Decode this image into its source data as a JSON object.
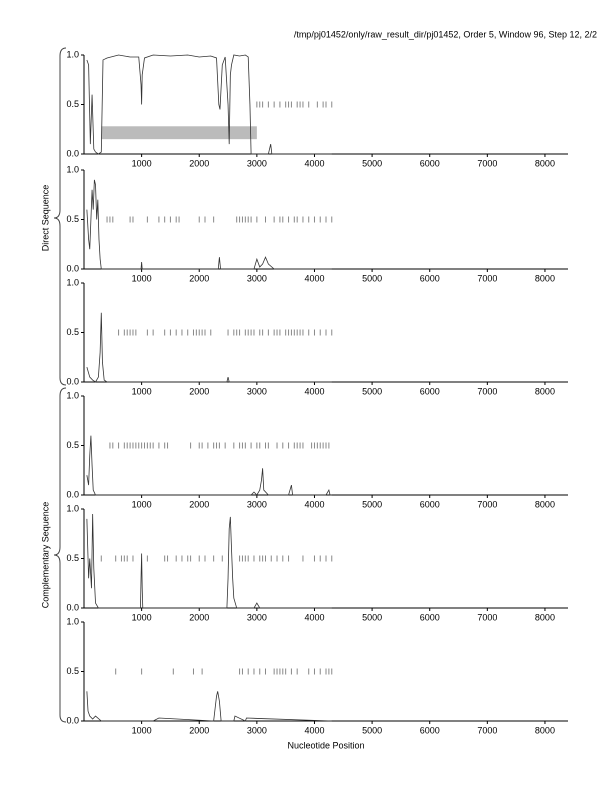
{
  "header": "/tmp/pj01452/only/raw_result_dir/pj01452, Order 5, Window 96, Step 12, 2/2",
  "group_labels": [
    "Direct Sequence",
    "Complementary Sequence"
  ],
  "xlabel": "Nucleotide Position",
  "chart_data": [
    {
      "type": "line",
      "color": "#333333",
      "marker_color": "#888888",
      "xlim": [
        0,
        8400
      ],
      "ylim": [
        0,
        1
      ],
      "xticks": [
        1000,
        2000,
        3000,
        4000,
        5000,
        6000,
        7000,
        8000
      ],
      "yticks": [
        {
          "value": 0,
          "label": "0.0"
        },
        0.5,
        {
          "value": 1,
          "label": "1.0"
        }
      ],
      "highlight": {
        "x": [
          300,
          3000
        ],
        "y": [
          0.15,
          0.28
        ],
        "color": "#bbbbbb"
      },
      "x": [
        50,
        80,
        110,
        140,
        170,
        200,
        250,
        300,
        330,
        400,
        600,
        800,
        950,
        990,
        1000,
        1010,
        1050,
        1200,
        1500,
        1800,
        2000,
        2200,
        2300,
        2340,
        2360,
        2400,
        2450,
        2500,
        2520,
        2540,
        2560,
        2600,
        2700,
        2800,
        2850,
        2880,
        2900,
        3000,
        3200,
        3240,
        3260,
        3300,
        4300
      ],
      "values": [
        0.95,
        0.9,
        0.1,
        0.6,
        0.05,
        0.02,
        0.0,
        0.02,
        0.95,
        0.97,
        1.0,
        0.98,
        0.98,
        0.7,
        0.5,
        0.8,
        0.97,
        1.0,
        0.99,
        1.0,
        0.98,
        0.99,
        0.97,
        0.5,
        0.45,
        0.9,
        0.98,
        0.5,
        0.1,
        0.8,
        0.9,
        1.0,
        0.99,
        1.0,
        0.98,
        0.5,
        0.0,
        0.0,
        0.0,
        0.1,
        0.0,
        0.0,
        0.0
      ],
      "markers": [
        3000,
        3050,
        3100,
        3200,
        3300,
        3400,
        3500,
        3550,
        3600,
        3700,
        3750,
        3800,
        3900,
        4050,
        4150,
        4200,
        4300
      ]
    },
    {
      "type": "line",
      "color": "#333333",
      "marker_color": "#888888",
      "xlim": [
        0,
        8400
      ],
      "ylim": [
        0,
        1
      ],
      "xticks": [
        1000,
        2000,
        3000,
        4000,
        5000,
        6000,
        7000,
        8000
      ],
      "yticks": [
        {
          "value": 0,
          "label": "0.0"
        },
        0.5,
        {
          "value": 1,
          "label": "1.0"
        }
      ],
      "x": [
        50,
        80,
        100,
        120,
        140,
        160,
        180,
        200,
        220,
        240,
        260,
        280,
        300,
        400,
        990,
        1000,
        1010,
        2330,
        2350,
        2370,
        2950,
        3000,
        3050,
        3100,
        3150,
        3200,
        3300,
        4300
      ],
      "values": [
        0.6,
        0.3,
        0.2,
        0.5,
        0.8,
        0.6,
        0.9,
        0.85,
        0.5,
        0.7,
        0.3,
        0.1,
        0.0,
        0.0,
        0.0,
        0.07,
        0.0,
        0.0,
        0.12,
        0.0,
        0.0,
        0.1,
        0.02,
        0.05,
        0.12,
        0.05,
        0.0,
        0.0
      ],
      "markers": [
        400,
        450,
        500,
        800,
        850,
        1100,
        1300,
        1400,
        1500,
        1600,
        1650,
        2000,
        2100,
        2250,
        2650,
        2700,
        2750,
        2800,
        2850,
        2900,
        3000,
        3150,
        3300,
        3400,
        3450,
        3550,
        3650,
        3700,
        3800,
        3900,
        4000,
        4100,
        4200,
        4300
      ]
    },
    {
      "type": "line",
      "color": "#333333",
      "marker_color": "#888888",
      "xlim": [
        0,
        8400
      ],
      "ylim": [
        0,
        1
      ],
      "xticks": [
        1000,
        2000,
        3000,
        4000,
        5000,
        6000,
        7000,
        8000
      ],
      "yticks": [
        {
          "value": 0,
          "label": "0.0"
        },
        0.5,
        {
          "value": 1,
          "label": "1.0"
        }
      ],
      "x": [
        50,
        100,
        150,
        200,
        250,
        280,
        300,
        320,
        350,
        400,
        2480,
        2500,
        2520,
        4300
      ],
      "values": [
        0.15,
        0.05,
        0.02,
        0.0,
        0.05,
        0.3,
        0.7,
        0.2,
        0.02,
        0.0,
        0.0,
        0.05,
        0.0,
        0.0
      ],
      "markers": [
        600,
        700,
        750,
        800,
        850,
        900,
        1100,
        1200,
        1400,
        1500,
        1600,
        1700,
        1800,
        1900,
        1950,
        2000,
        2050,
        2100,
        2200,
        2500,
        2600,
        2650,
        2700,
        2800,
        2850,
        2900,
        2950,
        3050,
        3100,
        3200,
        3300,
        3350,
        3400,
        3500,
        3550,
        3600,
        3650,
        3700,
        3750,
        3800,
        3900,
        4000,
        4100,
        4200,
        4300
      ]
    },
    {
      "type": "line",
      "color": "#333333",
      "marker_color": "#888888",
      "xlim": [
        0,
        8400
      ],
      "ylim": [
        0,
        1
      ],
      "xticks": [
        1000,
        2000,
        3000,
        4000,
        5000,
        6000,
        7000,
        8000
      ],
      "yticks": [
        {
          "value": 0,
          "label": "0.0"
        },
        0.5,
        {
          "value": 1,
          "label": "1.0"
        }
      ],
      "x": [
        50,
        80,
        100,
        120,
        140,
        160,
        200,
        300,
        2900,
        2950,
        3000,
        3050,
        3080,
        3100,
        3120,
        3200,
        3550,
        3600,
        3620,
        4200,
        4250,
        4270,
        4300
      ],
      "values": [
        0.2,
        0.1,
        0.4,
        0.6,
        0.3,
        0.05,
        0.0,
        0.0,
        0.0,
        0.03,
        0.0,
        0.05,
        0.15,
        0.27,
        0.05,
        0.0,
        0.0,
        0.1,
        0.0,
        0.0,
        0.05,
        0.0,
        0.0
      ],
      "markers": [
        450,
        500,
        600,
        700,
        750,
        800,
        850,
        900,
        950,
        1000,
        1050,
        1100,
        1150,
        1200,
        1300,
        1400,
        1450,
        1850,
        2000,
        2050,
        2150,
        2250,
        2300,
        2350,
        2450,
        2600,
        2700,
        2750,
        2800,
        2900,
        3000,
        3050,
        3150,
        3200,
        3350,
        3450,
        3550,
        3650,
        3700,
        3750,
        3800,
        3950,
        4000,
        4050,
        4100,
        4150,
        4200,
        4250
      ]
    },
    {
      "type": "line",
      "color": "#333333",
      "marker_color": "#888888",
      "xlim": [
        0,
        8400
      ],
      "ylim": [
        0,
        1
      ],
      "xticks": [
        1000,
        2000,
        3000,
        4000,
        5000,
        6000,
        7000,
        8000
      ],
      "yticks": [
        {
          "value": 0,
          "label": "0.0"
        },
        0.5,
        {
          "value": 1,
          "label": "1.0"
        }
      ],
      "x": [
        50,
        80,
        100,
        130,
        150,
        170,
        200,
        250,
        980,
        990,
        1000,
        1010,
        1020,
        2480,
        2500,
        2520,
        2540,
        2560,
        2580,
        2600,
        2650,
        2950,
        3000,
        3050,
        4300
      ],
      "values": [
        0.9,
        0.3,
        0.5,
        0.2,
        0.95,
        0.4,
        0.05,
        0.0,
        0.0,
        0.3,
        0.55,
        0.2,
        0.0,
        0.0,
        0.3,
        0.8,
        0.92,
        0.6,
        0.3,
        0.1,
        0.0,
        0.0,
        0.05,
        0.0,
        0.0
      ],
      "markers": [
        300,
        550,
        650,
        700,
        750,
        850,
        1100,
        1400,
        1450,
        1600,
        1700,
        1800,
        1850,
        2000,
        2100,
        2250,
        2400,
        2700,
        2750,
        2800,
        2850,
        2950,
        3050,
        3100,
        3150,
        3250,
        3350,
        3450,
        3550,
        3800,
        4000,
        4100,
        4200,
        4300
      ]
    },
    {
      "type": "line",
      "color": "#333333",
      "marker_color": "#888888",
      "xlim": [
        0,
        8400
      ],
      "ylim": [
        0,
        1
      ],
      "xticks": [
        1000,
        2000,
        3000,
        4000,
        5000,
        6000,
        7000,
        8000
      ],
      "yticks": [
        {
          "value": 0,
          "label": "0.0"
        },
        0.5,
        {
          "value": 1,
          "label": "1.0"
        }
      ],
      "x": [
        50,
        70,
        100,
        150,
        200,
        300,
        800,
        1200,
        1300,
        2250,
        2300,
        2320,
        2350,
        2380,
        2600,
        2620,
        2800,
        2820,
        4300
      ],
      "values": [
        0.3,
        0.1,
        0.05,
        0.02,
        0.05,
        0.0,
        0.0,
        0.0,
        0.03,
        0.0,
        0.25,
        0.3,
        0.2,
        0.0,
        0.0,
        0.05,
        0.0,
        0.03,
        0.0
      ],
      "markers": [
        550,
        1000,
        1550,
        1900,
        2050,
        2700,
        2750,
        2850,
        2950,
        3050,
        3150,
        3300,
        3350,
        3400,
        3450,
        3500,
        3600,
        3700,
        3900,
        4000,
        4100,
        4200,
        4250,
        4300
      ]
    }
  ]
}
